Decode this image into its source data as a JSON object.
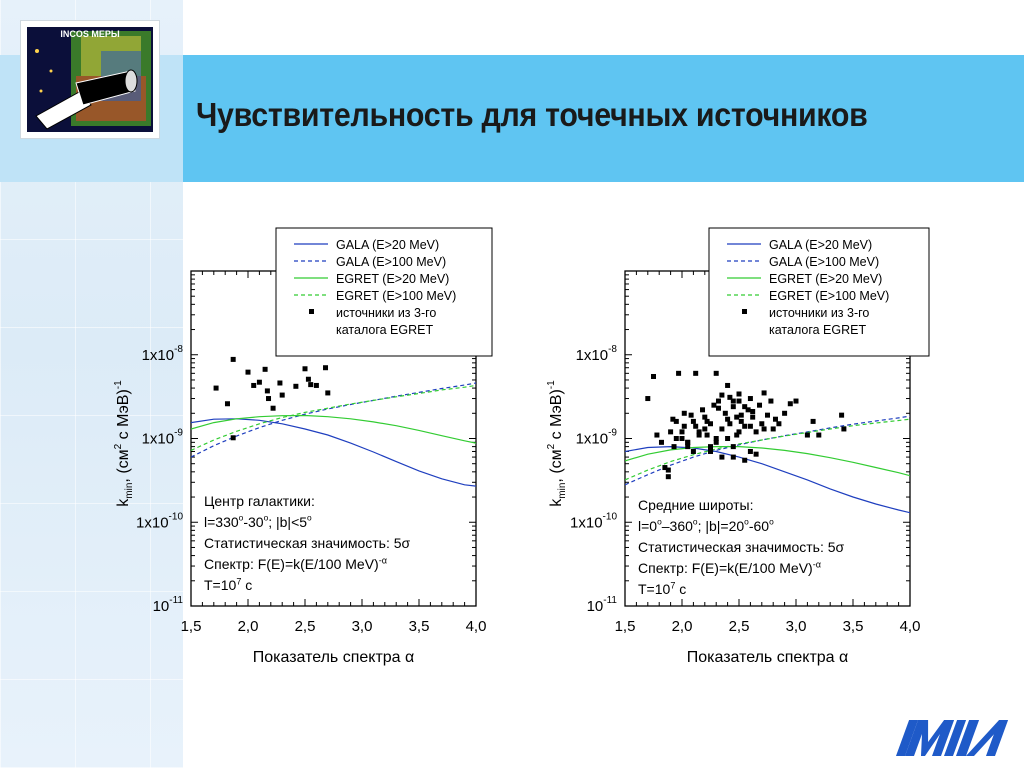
{
  "logo": {
    "text": "INCOS МЕРЫ"
  },
  "title": "Чувствительность для точечных источников",
  "legend": {
    "entries": [
      {
        "label": "GALA (E>20 MeV)",
        "color": "#1f3fbf",
        "dash": false
      },
      {
        "label": "GALA (E>100 MeV)",
        "color": "#1f3fbf",
        "dash": true
      },
      {
        "label": "EGRET (E>20 MeV)",
        "color": "#33cc33",
        "dash": false
      },
      {
        "label": "EGRET (E>100 MeV)",
        "color": "#33cc33",
        "dash": true
      },
      {
        "label": "источники из 3-го",
        "color": "#000000",
        "marker": true
      },
      {
        "label": "каталога EGRET",
        "color": "#000000",
        "marker": false
      }
    ]
  },
  "chart_data": [
    {
      "type": "line",
      "xlabel": "Показатель спектра α",
      "ylabel_main": "k",
      "ylabel_sub": "min",
      "ylabel_rest": ", (см",
      "ylabel_sup": "2",
      "ylabel_end": " с МэВ)",
      "ylabel_sup2": "-1",
      "xlim": [
        1.5,
        4.0
      ],
      "ylim": [
        1e-11,
        1e-07
      ],
      "yscale": "log",
      "xticks": [
        "1,5",
        "2,0",
        "2,5",
        "3,0",
        "3,5",
        "4,0"
      ],
      "ytick_labels": [
        {
          "base": "10",
          "exp": "-11",
          "value": 1e-11
        },
        {
          "base": "1x10",
          "exp": "-10",
          "value": 1e-10
        },
        {
          "base": "1x10",
          "exp": "-9",
          "value": 1e-09
        },
        {
          "base": "1x10",
          "exp": "-8",
          "value": 1e-08
        }
      ],
      "annotation": [
        "Центр галактики:",
        "l=330°-30°; |b|<5°",
        "Статистическая значимость: 5σ",
        "Спектр: F(E)=k(E/100 MeV)^-α",
        "T=10^7 с"
      ],
      "series": [
        {
          "name": "GALA (E>20 MeV)",
          "x": [
            1.5,
            1.7,
            1.9,
            2.1,
            2.3,
            2.5,
            2.7,
            2.9,
            3.1,
            3.3,
            3.5,
            3.7,
            3.9,
            4.0
          ],
          "y": [
            1.55e-09,
            1.7e-09,
            1.72e-09,
            1.65e-09,
            1.5e-09,
            1.3e-09,
            1.1e-09,
            8.8e-10,
            6.9e-10,
            5.3e-10,
            4.1e-10,
            3.3e-10,
            2.8e-10,
            2.7e-10
          ]
        },
        {
          "name": "GALA (E>100 MeV)",
          "x": [
            1.5,
            1.7,
            1.9,
            2.1,
            2.3,
            2.5,
            2.7,
            2.9,
            3.1,
            3.3,
            3.5,
            3.7,
            3.9,
            4.0
          ],
          "y": [
            6e-10,
            8.2e-10,
            1.07e-09,
            1.35e-09,
            1.65e-09,
            1.95e-09,
            2.25e-09,
            2.55e-09,
            2.85e-09,
            3.2e-09,
            3.55e-09,
            3.95e-09,
            4.35e-09,
            4.6e-09
          ]
        },
        {
          "name": "EGRET (E>20 MeV)",
          "x": [
            1.5,
            1.7,
            1.9,
            2.1,
            2.3,
            2.5,
            2.7,
            2.9,
            3.1,
            3.3,
            3.5,
            3.7,
            3.9,
            4.0
          ],
          "y": [
            1.3e-09,
            1.55e-09,
            1.72e-09,
            1.82e-09,
            1.87e-09,
            1.88e-09,
            1.82e-09,
            1.72e-09,
            1.58e-09,
            1.42e-09,
            1.25e-09,
            1.08e-09,
            9.4e-10,
            8.8e-10
          ]
        },
        {
          "name": "EGRET (E>100 MeV)",
          "x": [
            1.5,
            1.7,
            1.9,
            2.1,
            2.3,
            2.5,
            2.7,
            2.9,
            3.1,
            3.3,
            3.5,
            3.7,
            3.9,
            4.0
          ],
          "y": [
            7.2e-10,
            9.6e-10,
            1.22e-09,
            1.5e-09,
            1.78e-09,
            2.05e-09,
            2.3e-09,
            2.58e-09,
            2.85e-09,
            3.15e-09,
            3.45e-09,
            3.8e-09,
            4.1e-09,
            4.3e-09
          ]
        }
      ],
      "points": {
        "name": "источники из 3-го каталога EGRET",
        "x": [
          1.87,
          1.72,
          1.82,
          1.87,
          2.0,
          2.05,
          2.1,
          2.15,
          2.17,
          2.22,
          2.28,
          2.3,
          2.42,
          2.5,
          2.53,
          2.55,
          2.6,
          2.68,
          2.7,
          2.18
        ],
        "y": [
          8.8e-09,
          4e-09,
          2.6e-09,
          1.02e-09,
          6.2e-09,
          4.3e-09,
          4.7e-09,
          6.7e-09,
          3.7e-09,
          2.3e-09,
          4.6e-09,
          3.3e-09,
          4.2e-09,
          6.8e-09,
          5.1e-09,
          4.4e-09,
          4.3e-09,
          7e-09,
          3.5e-09,
          3e-09
        ]
      }
    },
    {
      "type": "line",
      "xlabel": "Показатель спектра α",
      "ylabel_main": "k",
      "ylabel_sub": "min",
      "ylabel_rest": ", (см",
      "ylabel_sup": "2",
      "ylabel_end": " с МэВ)",
      "ylabel_sup2": "-1",
      "xlim": [
        1.5,
        4.0
      ],
      "ylim": [
        1e-11,
        1e-07
      ],
      "yscale": "log",
      "xticks": [
        "1,5",
        "2,0",
        "2,5",
        "3,0",
        "3,5",
        "4,0"
      ],
      "ytick_labels": [
        {
          "base": "10",
          "exp": "-11",
          "value": 1e-11
        },
        {
          "base": "1x10",
          "exp": "-10",
          "value": 1e-10
        },
        {
          "base": "1x10",
          "exp": "-9",
          "value": 1e-09
        },
        {
          "base": "1x10",
          "exp": "-8",
          "value": 1e-08
        }
      ],
      "annotation": [
        "Средние широты:",
        "l=0°–360°; |b|=20°-60°",
        "Статистическая значимость: 5σ",
        "Спектр: F(E)=k(E/100 MeV)^-α",
        "T=10^7 с"
      ],
      "series": [
        {
          "name": "GALA (E>20 MeV)",
          "x": [
            1.5,
            1.7,
            1.9,
            2.1,
            2.3,
            2.5,
            2.7,
            2.9,
            3.1,
            3.3,
            3.5,
            3.7,
            3.9,
            4.0
          ],
          "y": [
            7e-10,
            7.8e-10,
            8e-10,
            7.7e-10,
            7e-10,
            6e-10,
            5e-10,
            4e-10,
            3.2e-10,
            2.5e-10,
            2e-10,
            1.65e-10,
            1.4e-10,
            1.3e-10
          ]
        },
        {
          "name": "GALA (E>100 MeV)",
          "x": [
            1.5,
            1.7,
            1.9,
            2.1,
            2.3,
            2.5,
            2.7,
            2.9,
            3.1,
            3.3,
            3.5,
            3.7,
            3.9,
            4.0
          ],
          "y": [
            2.8e-10,
            3.7e-10,
            4.8e-10,
            6e-10,
            7.2e-10,
            8.4e-10,
            9.6e-10,
            1.08e-09,
            1.2e-09,
            1.34e-09,
            1.48e-09,
            1.62e-09,
            1.76e-09,
            1.85e-09
          ]
        },
        {
          "name": "EGRET (E>20 MeV)",
          "x": [
            1.5,
            1.7,
            1.9,
            2.1,
            2.3,
            2.5,
            2.7,
            2.9,
            3.1,
            3.3,
            3.5,
            3.7,
            3.9,
            4.0
          ],
          "y": [
            5.4e-10,
            6.5e-10,
            7.3e-10,
            7.8e-10,
            8e-10,
            8e-10,
            7.7e-10,
            7.2e-10,
            6.6e-10,
            5.9e-10,
            5.2e-10,
            4.5e-10,
            3.9e-10,
            3.6e-10
          ]
        },
        {
          "name": "EGRET (E>100 MeV)",
          "x": [
            1.5,
            1.7,
            1.9,
            2.1,
            2.3,
            2.5,
            2.7,
            2.9,
            3.1,
            3.3,
            3.5,
            3.7,
            3.9,
            4.0
          ],
          "y": [
            3.2e-10,
            4.2e-10,
            5.3e-10,
            6.4e-10,
            7.5e-10,
            8.6e-10,
            9.6e-10,
            1.07e-09,
            1.18e-09,
            1.3e-09,
            1.42e-09,
            1.53e-09,
            1.64e-09,
            1.7e-09
          ]
        }
      ],
      "points": {
        "name": "источники из 3-го каталога EGRET",
        "x": [
          1.7,
          1.78,
          1.82,
          1.85,
          1.88,
          1.9,
          1.93,
          1.95,
          1.97,
          2.0,
          2.02,
          2.05,
          2.08,
          2.1,
          2.12,
          2.15,
          2.18,
          2.2,
          2.22,
          2.25,
          2.28,
          2.3,
          2.32,
          2.35,
          2.38,
          2.4,
          2.42,
          2.45,
          2.48,
          2.5,
          2.52,
          2.55,
          2.58,
          2.6,
          2.62,
          2.65,
          2.68,
          2.7,
          2.72,
          2.75,
          2.78,
          2.8,
          2.85,
          2.9,
          2.95,
          3.0,
          3.1,
          3.15,
          3.2,
          3.4,
          3.42,
          1.88,
          1.95,
          2.0,
          2.05,
          2.1,
          2.15,
          2.2,
          2.25,
          2.3,
          2.35,
          2.4,
          2.45,
          2.5,
          2.55,
          2.6,
          2.65,
          1.92,
          2.02,
          2.12,
          2.22,
          2.32,
          2.42,
          2.52,
          2.62,
          2.72,
          2.82,
          2.4,
          2.45,
          2.5,
          2.35,
          2.55,
          2.3,
          2.48,
          2.6,
          1.75,
          2.05,
          2.25,
          2.45
        ],
        "y": [
          3e-09,
          1.1e-09,
          9e-10,
          4.5e-10,
          3.5e-10,
          1.2e-09,
          8e-10,
          1.6e-09,
          6e-09,
          1e-09,
          1.4e-09,
          8e-10,
          1.9e-09,
          1.6e-09,
          6e-09,
          1.2e-09,
          2.2e-09,
          1.8e-09,
          1.1e-09,
          1.5e-09,
          2.5e-09,
          1e-09,
          2.8e-09,
          1.3e-09,
          2e-09,
          1.7e-09,
          3.1e-09,
          2.4e-09,
          1.1e-09,
          2.8e-09,
          1.6e-09,
          1.4e-09,
          2.2e-09,
          3e-09,
          1.8e-09,
          1.2e-09,
          2.5e-09,
          1.5e-09,
          3.5e-09,
          1.9e-09,
          2.8e-09,
          1.3e-09,
          1.5e-09,
          2e-09,
          2.6e-09,
          2.8e-09,
          1.1e-09,
          1.6e-09,
          1.1e-09,
          1.9e-09,
          1.3e-09,
          4.2e-10,
          1e-09,
          1.2e-09,
          9e-10,
          7e-10,
          1.1e-09,
          1.3e-09,
          8e-10,
          9e-10,
          6e-10,
          1e-09,
          8e-10,
          1.2e-09,
          5.5e-10,
          7e-10,
          6.5e-10,
          1.7e-09,
          2e-09,
          1.4e-09,
          1.6e-09,
          2.3e-09,
          1.5e-09,
          1.9e-09,
          2.1e-09,
          1.3e-09,
          1.7e-09,
          4.3e-09,
          2.8e-09,
          3.4e-09,
          3.3e-09,
          2.4e-09,
          6e-09,
          1.8e-09,
          1.4e-09,
          5.5e-09,
          9e-10,
          7e-10,
          6e-10
        ]
      }
    }
  ]
}
